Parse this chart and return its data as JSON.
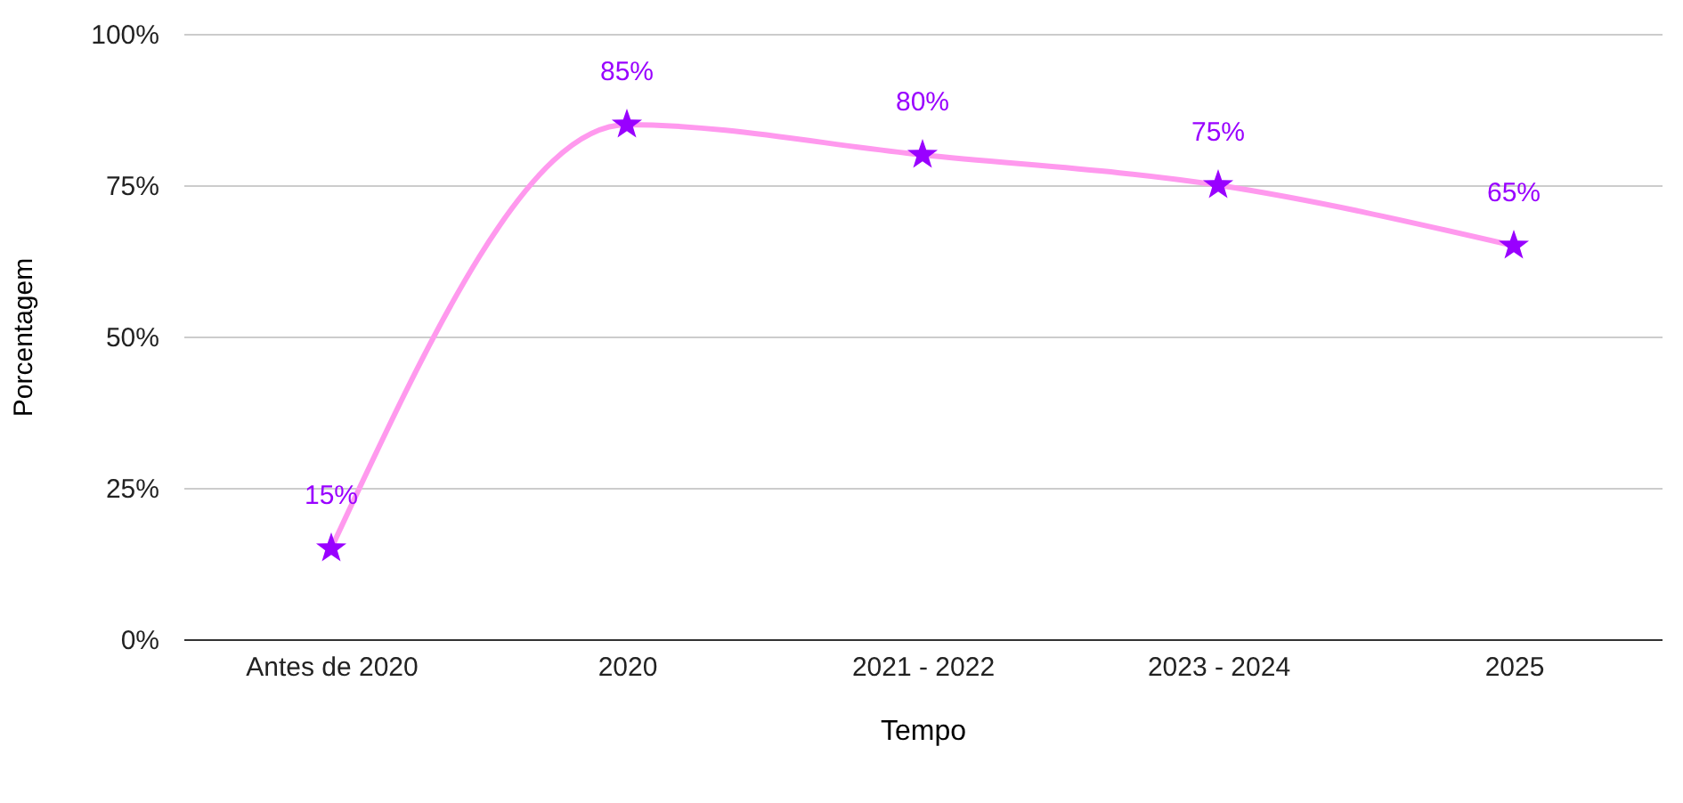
{
  "chart_data": {
    "type": "line",
    "xlabel": "Tempo",
    "ylabel": "Porcentagem",
    "categories": [
      "Antes de 2020",
      "2020",
      "2021 - 2022",
      "2023 - 2024",
      "2025"
    ],
    "series": [
      {
        "type": "line",
        "color": "#ff99ee",
        "values": [
          15,
          85,
          80,
          75,
          65
        ],
        "marker": "none"
      },
      {
        "type": "scatter",
        "color": "#9900ff",
        "values": [
          15,
          85,
          80,
          75,
          65
        ],
        "marker": "star",
        "value_labels": [
          "15%",
          "85%",
          "80%",
          "75%",
          "65%"
        ]
      }
    ],
    "ylim": [
      0,
      100
    ],
    "yticks": [
      {
        "value": 0,
        "label": "0%"
      },
      {
        "value": 25,
        "label": "25%"
      },
      {
        "value": 50,
        "label": "50%"
      },
      {
        "value": 75,
        "label": "75%"
      },
      {
        "value": 100,
        "label": "100%"
      }
    ],
    "grid": "y"
  }
}
